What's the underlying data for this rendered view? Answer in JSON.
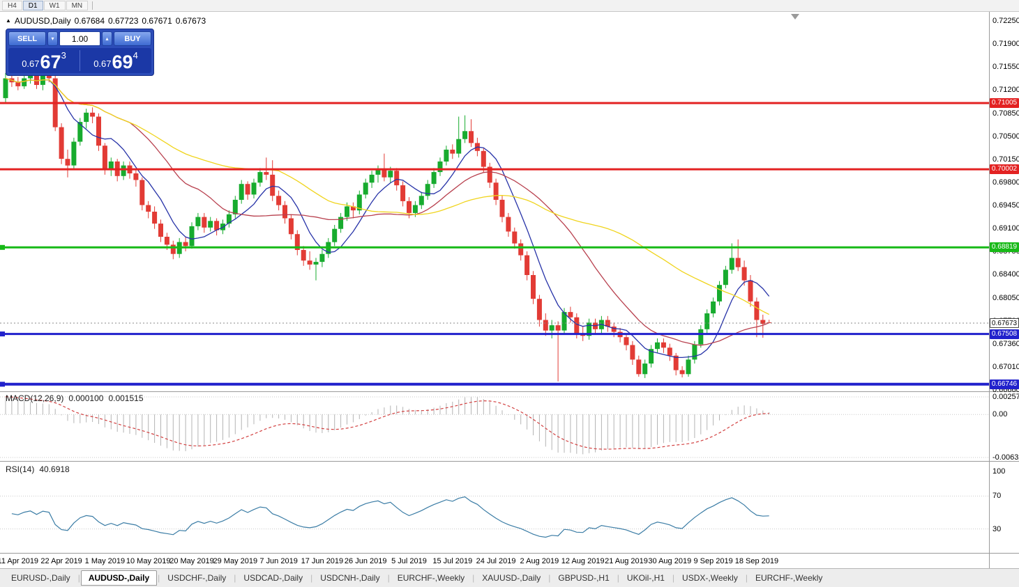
{
  "toolbar": {
    "timeframes": [
      "H4",
      "D1",
      "W1",
      "MN"
    ],
    "active": "D1"
  },
  "chart_header": {
    "symbol": "AUDUSD,Daily",
    "open": "0.67684",
    "high": "0.67723",
    "low": "0.67671",
    "close": "0.67673"
  },
  "trade_panel": {
    "sell_label": "SELL",
    "buy_label": "BUY",
    "lot": "1.00",
    "sell_price": {
      "small": "0.67",
      "big": "67",
      "sup": "3"
    },
    "buy_price": {
      "small": "0.67",
      "big": "69",
      "sup": "4"
    }
  },
  "price_axis": [
    "0.72250",
    "0.71900",
    "0.71550",
    "0.71200",
    "0.70850",
    "0.70500",
    "0.70150",
    "0.69800",
    "0.69450",
    "0.69100",
    "0.68750",
    "0.68400",
    "0.68050",
    "0.67700",
    "0.67360",
    "0.67010",
    "0.66660"
  ],
  "hlines": [
    {
      "label": "0.71005",
      "value": 0.71005,
      "color": "#e32222",
      "width": 3,
      "marker": false
    },
    {
      "label": "0.70002",
      "value": 0.70002,
      "color": "#e32222",
      "width": 3,
      "marker": false
    },
    {
      "label": "0.68819",
      "value": 0.68819,
      "color": "#17b917",
      "width": 3,
      "marker": true
    },
    {
      "label": "0.67508",
      "value": 0.67508,
      "color": "#2121cc",
      "width": 3,
      "marker": true
    },
    {
      "label": "0.66746",
      "value": 0.66746,
      "color": "#2121cc",
      "width": 4,
      "marker": true
    }
  ],
  "bid_line": {
    "label": "0.67673",
    "value": 0.67673
  },
  "chart_data": {
    "type": "candlestick",
    "title": "AUDUSD,Daily",
    "ylim": [
      0.6666,
      0.7225
    ],
    "bull_color": "#17ab2e",
    "bear_color": "#e23b35",
    "date_labels": [
      "11 Apr 2019",
      "22 Apr 2019",
      "1 May 2019",
      "10 May 2019",
      "20 May 2019",
      "29 May 2019",
      "7 Jun 2019",
      "17 Jun 2019",
      "26 Jun 2019",
      "5 Jul 2019",
      "15 Jul 2019",
      "24 Jul 2019",
      "2 Aug 2019",
      "12 Aug 2019",
      "21 Aug 2019",
      "30 Aug 2019",
      "9 Sep 2019",
      "18 Sep 2019"
    ],
    "candles": [
      [
        0.7108,
        0.7146,
        0.7102,
        0.7138
      ],
      [
        0.7138,
        0.7148,
        0.7125,
        0.7132
      ],
      [
        0.7132,
        0.714,
        0.712,
        0.7126
      ],
      [
        0.7126,
        0.7142,
        0.7122,
        0.7138
      ],
      [
        0.7138,
        0.715,
        0.713,
        0.7144
      ],
      [
        0.7144,
        0.7148,
        0.7122,
        0.7128
      ],
      [
        0.7128,
        0.7147,
        0.712,
        0.7143
      ],
      [
        0.7143,
        0.715,
        0.7132,
        0.7138
      ],
      [
        0.7138,
        0.7142,
        0.7058,
        0.7064
      ],
      [
        0.7064,
        0.707,
        0.7008,
        0.7016
      ],
      [
        0.7016,
        0.703,
        0.6988,
        0.7006
      ],
      [
        0.7006,
        0.7048,
        0.7,
        0.7042
      ],
      [
        0.7042,
        0.7078,
        0.7036,
        0.7072
      ],
      [
        0.7072,
        0.7092,
        0.7062,
        0.7086
      ],
      [
        0.7086,
        0.7094,
        0.707,
        0.708
      ],
      [
        0.708,
        0.7085,
        0.7028,
        0.7036
      ],
      [
        0.7036,
        0.704,
        0.6992,
        0.7
      ],
      [
        0.7,
        0.7018,
        0.699,
        0.7012
      ],
      [
        0.7012,
        0.7016,
        0.6982,
        0.699
      ],
      [
        0.699,
        0.7012,
        0.6984,
        0.7006
      ],
      [
        0.7006,
        0.7012,
        0.6986,
        0.6994
      ],
      [
        0.6994,
        0.7,
        0.6974,
        0.6984
      ],
      [
        0.6984,
        0.6988,
        0.6938,
        0.6946
      ],
      [
        0.6946,
        0.6952,
        0.6926,
        0.6936
      ],
      [
        0.6936,
        0.6944,
        0.691,
        0.6918
      ],
      [
        0.6918,
        0.6924,
        0.689,
        0.6898
      ],
      [
        0.6898,
        0.6904,
        0.6878,
        0.6886
      ],
      [
        0.6886,
        0.6892,
        0.6864,
        0.6872
      ],
      [
        0.6872,
        0.6896,
        0.6866,
        0.689
      ],
      [
        0.689,
        0.6898,
        0.6876,
        0.6884
      ],
      [
        0.6884,
        0.692,
        0.688,
        0.6914
      ],
      [
        0.6914,
        0.6934,
        0.6908,
        0.6928
      ],
      [
        0.6928,
        0.6934,
        0.6904,
        0.6912
      ],
      [
        0.6912,
        0.6928,
        0.6906,
        0.6922
      ],
      [
        0.6922,
        0.6926,
        0.69,
        0.6908
      ],
      [
        0.6908,
        0.6924,
        0.6902,
        0.6918
      ],
      [
        0.6918,
        0.6938,
        0.6912,
        0.6932
      ],
      [
        0.6932,
        0.696,
        0.6926,
        0.6954
      ],
      [
        0.6954,
        0.6984,
        0.6948,
        0.6978
      ],
      [
        0.6978,
        0.6982,
        0.6954,
        0.6962
      ],
      [
        0.6962,
        0.6986,
        0.6956,
        0.698
      ],
      [
        0.698,
        0.7002,
        0.6974,
        0.6996
      ],
      [
        0.6996,
        0.7018,
        0.6984,
        0.6992
      ],
      [
        0.6992,
        0.7014,
        0.6952,
        0.696
      ],
      [
        0.696,
        0.6968,
        0.6938,
        0.6946
      ],
      [
        0.6946,
        0.6952,
        0.6918,
        0.6926
      ],
      [
        0.6926,
        0.6932,
        0.6894,
        0.6902
      ],
      [
        0.6902,
        0.6908,
        0.687,
        0.6878
      ],
      [
        0.6878,
        0.6884,
        0.6854,
        0.6862
      ],
      [
        0.6862,
        0.6876,
        0.6848,
        0.6856
      ],
      [
        0.6856,
        0.6866,
        0.6832,
        0.686
      ],
      [
        0.686,
        0.6878,
        0.6852,
        0.6872
      ],
      [
        0.6872,
        0.6896,
        0.6866,
        0.689
      ],
      [
        0.689,
        0.6916,
        0.6884,
        0.691
      ],
      [
        0.691,
        0.6934,
        0.6904,
        0.6928
      ],
      [
        0.6928,
        0.695,
        0.6922,
        0.6944
      ],
      [
        0.6944,
        0.695,
        0.6926,
        0.6938
      ],
      [
        0.6938,
        0.6968,
        0.6932,
        0.6962
      ],
      [
        0.6962,
        0.6986,
        0.6956,
        0.698
      ],
      [
        0.698,
        0.6998,
        0.6972,
        0.6992
      ],
      [
        0.6992,
        0.7006,
        0.698,
        0.7
      ],
      [
        0.7,
        0.7024,
        0.6982,
        0.6988
      ],
      [
        0.6988,
        0.7004,
        0.698,
        0.6998
      ],
      [
        0.6998,
        0.7002,
        0.6968,
        0.6976
      ],
      [
        0.6976,
        0.6982,
        0.6944,
        0.6952
      ],
      [
        0.6952,
        0.6958,
        0.6926,
        0.6934
      ],
      [
        0.6934,
        0.6952,
        0.6928,
        0.6946
      ],
      [
        0.6946,
        0.6966,
        0.694,
        0.696
      ],
      [
        0.696,
        0.6984,
        0.6954,
        0.6978
      ],
      [
        0.6978,
        0.7002,
        0.6972,
        0.6996
      ],
      [
        0.6996,
        0.7018,
        0.699,
        0.7012
      ],
      [
        0.7012,
        0.7036,
        0.7006,
        0.703
      ],
      [
        0.703,
        0.7038,
        0.7016,
        0.7024
      ],
      [
        0.7024,
        0.708,
        0.7018,
        0.7046
      ],
      [
        0.7046,
        0.7082,
        0.704,
        0.7058
      ],
      [
        0.7058,
        0.7076,
        0.7034,
        0.704
      ],
      [
        0.704,
        0.7048,
        0.702,
        0.7028
      ],
      [
        0.7028,
        0.7032,
        0.6996,
        0.7004
      ],
      [
        0.7004,
        0.701,
        0.6972,
        0.698
      ],
      [
        0.698,
        0.6986,
        0.6946,
        0.6954
      ],
      [
        0.6954,
        0.696,
        0.692,
        0.6928
      ],
      [
        0.6928,
        0.6934,
        0.6898,
        0.6906
      ],
      [
        0.6906,
        0.6912,
        0.688,
        0.6888
      ],
      [
        0.6888,
        0.6894,
        0.6862,
        0.687
      ],
      [
        0.687,
        0.6876,
        0.6832,
        0.684
      ],
      [
        0.684,
        0.6846,
        0.6796,
        0.6804
      ],
      [
        0.6804,
        0.681,
        0.6762,
        0.6772
      ],
      [
        0.6772,
        0.6782,
        0.6748,
        0.6756
      ],
      [
        0.6756,
        0.6772,
        0.6744,
        0.6764
      ],
      [
        0.6764,
        0.677,
        0.6679,
        0.6756
      ],
      [
        0.6756,
        0.679,
        0.675,
        0.6784
      ],
      [
        0.6784,
        0.6792,
        0.6768,
        0.6776
      ],
      [
        0.6776,
        0.6782,
        0.6744,
        0.6752
      ],
      [
        0.6752,
        0.6762,
        0.674,
        0.6748
      ],
      [
        0.6748,
        0.6774,
        0.6742,
        0.6768
      ],
      [
        0.6768,
        0.6774,
        0.675,
        0.6758
      ],
      [
        0.6758,
        0.6778,
        0.6752,
        0.6772
      ],
      [
        0.6772,
        0.6778,
        0.6754,
        0.6762
      ],
      [
        0.6762,
        0.6768,
        0.6746,
        0.6754
      ],
      [
        0.6754,
        0.676,
        0.6738,
        0.6746
      ],
      [
        0.6746,
        0.6752,
        0.6726,
        0.6734
      ],
      [
        0.6734,
        0.674,
        0.6704,
        0.6712
      ],
      [
        0.6712,
        0.6718,
        0.6686,
        0.669
      ],
      [
        0.669,
        0.6712,
        0.6684,
        0.6706
      ],
      [
        0.6706,
        0.6734,
        0.67,
        0.6728
      ],
      [
        0.6728,
        0.6744,
        0.6722,
        0.6738
      ],
      [
        0.6738,
        0.6744,
        0.6722,
        0.673
      ],
      [
        0.673,
        0.6736,
        0.671,
        0.6718
      ],
      [
        0.6718,
        0.6722,
        0.6688,
        0.6696
      ],
      [
        0.6696,
        0.6702,
        0.6685,
        0.669
      ],
      [
        0.669,
        0.6718,
        0.6686,
        0.6712
      ],
      [
        0.6712,
        0.674,
        0.6706,
        0.6735
      ],
      [
        0.6735,
        0.6764,
        0.673,
        0.6758
      ],
      [
        0.6758,
        0.6788,
        0.6752,
        0.6782
      ],
      [
        0.6782,
        0.6806,
        0.6776,
        0.68
      ],
      [
        0.68,
        0.6831,
        0.6794,
        0.6825
      ],
      [
        0.6825,
        0.6854,
        0.682,
        0.6848
      ],
      [
        0.6848,
        0.6888,
        0.6842,
        0.6866
      ],
      [
        0.6866,
        0.6894,
        0.6846,
        0.6852
      ],
      [
        0.6852,
        0.6862,
        0.6824,
        0.6832
      ],
      [
        0.6832,
        0.684,
        0.6792,
        0.68
      ],
      [
        0.68,
        0.6806,
        0.6746,
        0.6772
      ],
      [
        0.6772,
        0.678,
        0.6745,
        0.6766
      ],
      [
        0.67684,
        0.67723,
        0.67671,
        0.67673
      ]
    ],
    "moving_averages": [
      {
        "period": 7,
        "color": "#2733a8"
      },
      {
        "period": 21,
        "color": "#b8404e"
      },
      {
        "period": 45,
        "color": "#f0d41c"
      }
    ],
    "macd": {
      "label": "MACD(12,26,9)",
      "fast": 12,
      "slow": 26,
      "signal": 9,
      "current_macd": "0.000100",
      "current_signal": "0.001515",
      "axis": [
        0.002574,
        0,
        -0.006326
      ],
      "axis_labels": [
        "0.002574",
        "0.00",
        "-0.006326"
      ],
      "start_value": 0.0026,
      "hist_color": "#b4b4b4",
      "signal_color": "#d23f3f"
    },
    "rsi": {
      "label": "RSI(14)",
      "period": 14,
      "current": "40.6918",
      "levels": [
        70,
        30
      ],
      "axis_values": [
        100,
        70,
        30
      ],
      "axis_labels": [
        "100",
        "70",
        "30"
      ],
      "range": [
        0,
        100
      ],
      "color": "#3a7ca5"
    }
  },
  "tabs": [
    {
      "label": "EURUSD-,Daily",
      "active": false
    },
    {
      "label": "AUDUSD-,Daily",
      "active": true
    },
    {
      "label": "USDCHF-,Daily",
      "active": false
    },
    {
      "label": "USDCAD-,Daily",
      "active": false
    },
    {
      "label": "USDCNH-,Daily",
      "active": false
    },
    {
      "label": "EURCHF-,Weekly",
      "active": false
    },
    {
      "label": "XAUUSD-,Daily",
      "active": false
    },
    {
      "label": "GBPUSD-,H1",
      "active": false
    },
    {
      "label": "UKOil-,H1",
      "active": false
    },
    {
      "label": "USDX-,Weekly",
      "active": false
    },
    {
      "label": "EURCHF-,Weekly",
      "active": false
    }
  ]
}
